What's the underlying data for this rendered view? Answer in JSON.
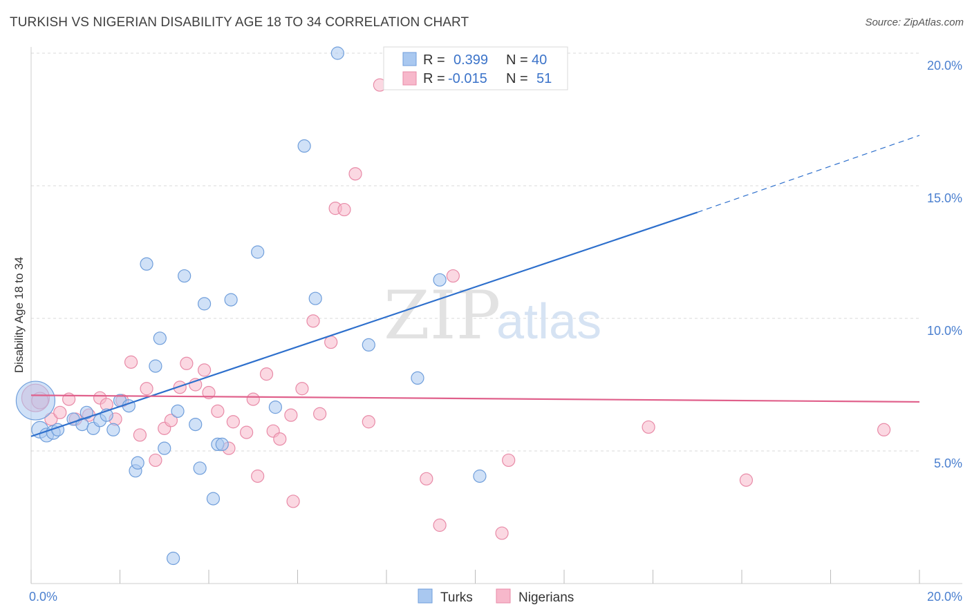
{
  "title": "TURKISH VS NIGERIAN DISABILITY AGE 18 TO 34 CORRELATION CHART",
  "source": "Source: ZipAtlas.com",
  "watermark": {
    "zip": "ZIP",
    "atlas": "atlas"
  },
  "legend": {
    "rows": [
      {
        "r_label": "R =",
        "r_value": "0.399",
        "n_label": "N =",
        "n_value": "40",
        "color": "#a9c8f0"
      },
      {
        "r_label": "R =",
        "r_value": "-0.015",
        "n_label": "N =",
        "n_value": "51",
        "color": "#f7b8cb"
      }
    ]
  },
  "chart_data": {
    "type": "scatter",
    "xlabel": "",
    "ylabel": "Disability Age 18 to 34",
    "xlim": [
      0,
      20
    ],
    "ylim": [
      0,
      20
    ],
    "x_tick_labels": [
      {
        "value": 0,
        "label": "0.0%"
      },
      {
        "value": 20,
        "label": "20.0%"
      }
    ],
    "y_tick_labels": [
      {
        "value": 5,
        "label": "5.0%"
      },
      {
        "value": 10,
        "label": "10.0%"
      },
      {
        "value": 15,
        "label": "15.0%"
      },
      {
        "value": 20,
        "label": "20.0%"
      }
    ],
    "grid": true,
    "series": [
      {
        "name": "Turks",
        "color": "#a9c8f0",
        "stroke": "#6f9edb",
        "trend_color": "#2d6fcc",
        "trend": {
          "x0": 0,
          "y0": 5.55,
          "x1": 15.0,
          "y1": 14.0,
          "dashed_to_x": 20,
          "dashed_to_y": 16.9
        },
        "points": [
          [
            0.1,
            6.9,
            28
          ],
          [
            0.2,
            5.8,
            12
          ],
          [
            0.35,
            5.6,
            10
          ],
          [
            0.5,
            5.7,
            10
          ],
          [
            0.6,
            5.8,
            9
          ],
          [
            0.95,
            6.2,
            9
          ],
          [
            1.15,
            6.0,
            9
          ],
          [
            1.25,
            6.45,
            9
          ],
          [
            1.4,
            5.85,
            9
          ],
          [
            1.55,
            6.15,
            9
          ],
          [
            1.7,
            6.35,
            9
          ],
          [
            1.85,
            5.8,
            9
          ],
          [
            2.0,
            6.9,
            9
          ],
          [
            2.2,
            6.7,
            9
          ],
          [
            2.35,
            4.25,
            9
          ],
          [
            2.4,
            4.55,
            9
          ],
          [
            2.6,
            12.05,
            9
          ],
          [
            2.8,
            8.2,
            9
          ],
          [
            2.9,
            9.25,
            9
          ],
          [
            3.0,
            5.1,
            9
          ],
          [
            3.2,
            0.95,
            9
          ],
          [
            3.3,
            6.5,
            9
          ],
          [
            3.45,
            11.6,
            9
          ],
          [
            3.7,
            6.0,
            9
          ],
          [
            3.8,
            4.35,
            9
          ],
          [
            3.9,
            10.55,
            9
          ],
          [
            4.1,
            3.2,
            9
          ],
          [
            4.2,
            5.25,
            9
          ],
          [
            4.3,
            5.25,
            9
          ],
          [
            4.5,
            10.7,
            9
          ],
          [
            5.1,
            12.5,
            9
          ],
          [
            5.5,
            6.65,
            9
          ],
          [
            6.15,
            16.5,
            9
          ],
          [
            6.4,
            10.75,
            9
          ],
          [
            6.9,
            20.0,
            9
          ],
          [
            7.6,
            9.0,
            9
          ],
          [
            8.7,
            7.75,
            9
          ],
          [
            9.2,
            11.45,
            9
          ],
          [
            10.1,
            4.05,
            9
          ]
        ]
      },
      {
        "name": "Nigerians",
        "color": "#f7b8cb",
        "stroke": "#e88aa7",
        "trend_color": "#e0608b",
        "trend": {
          "x0": 0,
          "y0": 7.1,
          "x1": 20,
          "y1": 6.85
        },
        "points": [
          [
            0.1,
            7.0,
            20
          ],
          [
            0.2,
            6.9,
            12
          ],
          [
            0.45,
            6.2,
            9
          ],
          [
            0.65,
            6.45,
            9
          ],
          [
            0.85,
            6.95,
            9
          ],
          [
            1.0,
            6.2,
            9
          ],
          [
            1.3,
            6.35,
            9
          ],
          [
            1.55,
            7.0,
            9
          ],
          [
            1.7,
            6.75,
            9
          ],
          [
            1.9,
            6.2,
            9
          ],
          [
            2.05,
            6.9,
            9
          ],
          [
            2.25,
            8.35,
            9
          ],
          [
            2.45,
            5.6,
            9
          ],
          [
            2.6,
            7.35,
            9
          ],
          [
            2.8,
            4.65,
            9
          ],
          [
            3.0,
            5.85,
            9
          ],
          [
            3.15,
            6.15,
            9
          ],
          [
            3.35,
            7.4,
            9
          ],
          [
            3.5,
            8.3,
            9
          ],
          [
            3.7,
            7.5,
            9
          ],
          [
            3.9,
            8.05,
            9
          ],
          [
            4.0,
            7.2,
            9
          ],
          [
            4.2,
            6.5,
            9
          ],
          [
            4.45,
            5.1,
            9
          ],
          [
            4.55,
            6.1,
            9
          ],
          [
            4.85,
            5.7,
            9
          ],
          [
            5.0,
            6.95,
            9
          ],
          [
            5.1,
            4.05,
            9
          ],
          [
            5.3,
            7.9,
            9
          ],
          [
            5.45,
            5.75,
            9
          ],
          [
            5.6,
            5.45,
            9
          ],
          [
            5.85,
            6.35,
            9
          ],
          [
            5.9,
            3.1,
            9
          ],
          [
            6.1,
            7.35,
            9
          ],
          [
            6.35,
            9.9,
            9
          ],
          [
            6.5,
            6.4,
            9
          ],
          [
            6.75,
            9.1,
            9
          ],
          [
            6.85,
            14.15,
            9
          ],
          [
            7.05,
            14.1,
            9
          ],
          [
            7.3,
            15.45,
            9
          ],
          [
            7.6,
            6.1,
            9
          ],
          [
            7.85,
            18.8,
            9
          ],
          [
            8.9,
            3.95,
            9
          ],
          [
            9.2,
            2.2,
            9
          ],
          [
            9.5,
            11.6,
            9
          ],
          [
            10.6,
            1.9,
            9
          ],
          [
            10.75,
            4.65,
            9
          ],
          [
            13.9,
            5.9,
            9
          ],
          [
            16.1,
            3.9,
            9
          ],
          [
            19.2,
            5.8,
            9
          ]
        ]
      }
    ]
  }
}
